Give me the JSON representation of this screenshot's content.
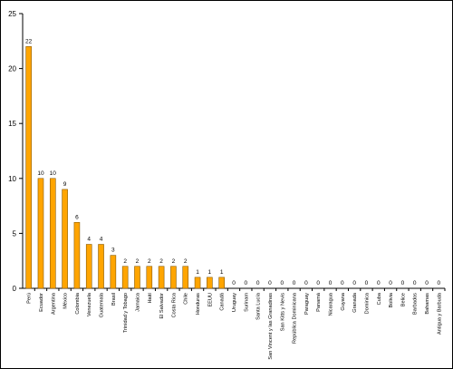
{
  "chart_data": {
    "type": "bar",
    "title": "",
    "xlabel": "",
    "ylabel": "",
    "ylim": [
      0,
      25
    ],
    "yticks": [
      0,
      5,
      10,
      15,
      20,
      25
    ],
    "grid": false,
    "legend": "none",
    "colors": {
      "bar": "#ffa500",
      "bar_edge": "#8a5a00",
      "axis": "#000000"
    },
    "categories": [
      "Perú",
      "Ecuador",
      "Argentina",
      "México",
      "Colombia",
      "Venezuela",
      "Guatemala",
      "Brasil",
      "Trinidad y Tobago",
      "Jamaica",
      "Haití",
      "El Salvador",
      "Costa Rica",
      "Chile",
      "Honduras",
      "EEUU",
      "Canadá",
      "Uruguay",
      "Surinam",
      "Santa Lucía",
      "San Vincent y las Granadinas",
      "San Kitts y Nevis",
      "República Dominicana",
      "Paraguay",
      "Panamá",
      "Nicaragua",
      "Guyana",
      "Granada",
      "Dominica",
      "Cuba",
      "Bolivia",
      "Belice",
      "Barbados",
      "Bahamas",
      "Antigua y Barbuda"
    ],
    "values": [
      22,
      10,
      10,
      9,
      6,
      4,
      4,
      3,
      2,
      2,
      2,
      2,
      2,
      2,
      1,
      1,
      1,
      0,
      0,
      0,
      0,
      0,
      0,
      0,
      0,
      0,
      0,
      0,
      0,
      0,
      0,
      0,
      0,
      0,
      0
    ]
  }
}
